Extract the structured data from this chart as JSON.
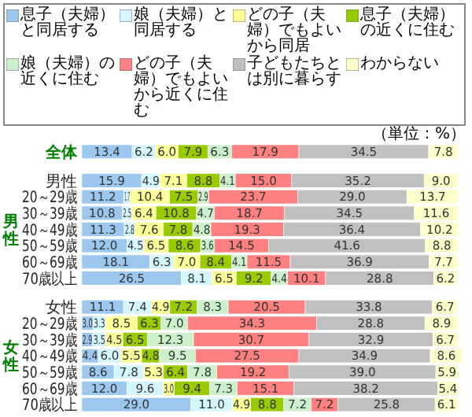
{
  "chart_data": {
    "type": "bar",
    "orientation": "horizontal",
    "stacked": true,
    "legend": "top",
    "xlim": [
      0,
      101.2
    ],
    "annotations": [
      "男性",
      "女性",
      "（単位：%）"
    ],
    "categories": [
      "全体",
      "男性",
      "20～29歳",
      "30～39歳",
      "40～49歳",
      "50～59歳",
      "60～69歳",
      "70歳以上",
      "女性",
      "20～29歳",
      "30～39歳",
      "40～49歳",
      "50～59歳",
      "60～69歳",
      "70歳以上"
    ],
    "series": [
      {
        "name": "息子（夫婦）と同居する",
        "color": "#9cc8f0",
        "values": [
          13.4,
          15.9,
          11.2,
          10.8,
          11.3,
          12.0,
          18.1,
          26.5,
          11.1,
          3.0,
          2.9,
          4.4,
          8.6,
          12.0,
          29.0
        ],
        "value_labels": [
          "13.4",
          "15.9",
          "11.2",
          "10.8",
          "11.3",
          "12.0",
          "18.1",
          "26.5",
          "11.1",
          "3.0",
          "2.9",
          "4.4",
          "8.6",
          "12.0",
          "29.0"
        ]
      },
      {
        "name": "娘（夫婦）と同居する",
        "color": "#d4f6ff",
        "values": [
          6.2,
          4.9,
          1.7,
          2.5,
          2.8,
          4.5,
          6.3,
          8.1,
          7.4,
          3.3,
          3.5,
          6.0,
          7.8,
          9.6,
          11.0
        ],
        "value_labels": [
          "6.2",
          "4.9",
          "1.7",
          "2.5",
          "2.8",
          "4.5",
          "6.3",
          "8.1",
          "7.4",
          "3.3",
          "3.5",
          "6.0",
          "7.8",
          "9.6",
          "11.0"
        ]
      },
      {
        "name": "どの子（夫婦）でもよいから同居",
        "color": "#ffff99",
        "values": [
          6.0,
          7.1,
          10.4,
          6.4,
          7.6,
          6.5,
          7.0,
          6.5,
          4.9,
          8.5,
          4.5,
          5.5,
          5.3,
          3.0,
          4.9
        ],
        "value_labels": [
          "6.0",
          "7.1",
          "10.4",
          "6.4",
          "7.6",
          "6.5",
          "7.0",
          "6.5",
          "4.9",
          "8.5",
          "4.5",
          "5.5",
          "5.3",
          "3.0",
          "4.9"
        ]
      },
      {
        "name": "息子（夫婦）の近くに住む",
        "color": "#99cc00",
        "values": [
          7.9,
          8.8,
          7.5,
          10.8,
          7.8,
          8.6,
          8.4,
          9.2,
          7.2,
          6.3,
          6.5,
          4.8,
          6.4,
          9.4,
          8.8
        ],
        "value_labels": [
          "7.9",
          "8.8",
          "7.5",
          "10.8",
          "7.8",
          "8.6",
          "8.4",
          "9.2",
          "7.2",
          "6.3",
          "6.5",
          "4.8",
          "6.4",
          "9.4",
          "8.8"
        ]
      },
      {
        "name": "娘（夫婦）の近くに住む",
        "color": "#ccf0cc",
        "values": [
          6.3,
          4.1,
          2.9,
          4.7,
          4.8,
          3.6,
          4.1,
          4.4,
          8.3,
          7.0,
          12.3,
          9.5,
          7.8,
          7.3,
          7.2
        ],
        "value_labels": [
          "6.3",
          "4.1",
          "2.9",
          "4.7",
          "4.8",
          "3.6",
          "4.1",
          "4.4",
          "8.3",
          "7.0",
          "12.3",
          "9.5",
          "7.8",
          "7.3",
          "7.2"
        ]
      },
      {
        "name": "どの子（夫婦）でもよいから近くに住む",
        "color": "#ff8080",
        "values": [
          17.9,
          15.0,
          23.7,
          18.7,
          19.3,
          14.5,
          11.5,
          10.1,
          20.5,
          34.3,
          30.7,
          27.5,
          19.2,
          15.1,
          7.2
        ],
        "value_labels": [
          "17.9",
          "15.0",
          "23.7",
          "18.7",
          "19.3",
          "14.5",
          "11.5",
          "10.1",
          "20.5",
          "34.3",
          "30.7",
          "27.5",
          "19.2",
          "15.1",
          "7.2"
        ]
      },
      {
        "name": "子どもたちとは別に暮らす",
        "color": "#c0c0c0",
        "values": [
          34.5,
          35.2,
          29.0,
          34.5,
          36.4,
          41.6,
          36.9,
          28.8,
          33.8,
          28.8,
          32.9,
          34.9,
          39.0,
          38.2,
          25.8
        ],
        "value_labels": [
          "34.5",
          "35.2",
          "29.0",
          "34.5",
          "36.4",
          "41.6",
          "36.9",
          "28.8",
          "33.8",
          "28.8",
          "32.9",
          "34.9",
          "39.0",
          "38.2",
          "25.8"
        ]
      },
      {
        "name": "わからない",
        "color": "#ffffcc",
        "values": [
          7.8,
          9.0,
          13.7,
          11.6,
          10.2,
          8.8,
          7.7,
          6.2,
          6.7,
          8.9,
          6.7,
          8.6,
          5.9,
          5.4,
          6.1
        ],
        "value_labels": [
          "7.8",
          "9.0",
          "13.7",
          "11.6",
          "10.2",
          "8.8",
          "7.7",
          "6.2",
          "6.7",
          "8.9",
          "6.7",
          "8.6",
          "5.9",
          "5.4",
          "6.1"
        ]
      }
    ]
  }
}
